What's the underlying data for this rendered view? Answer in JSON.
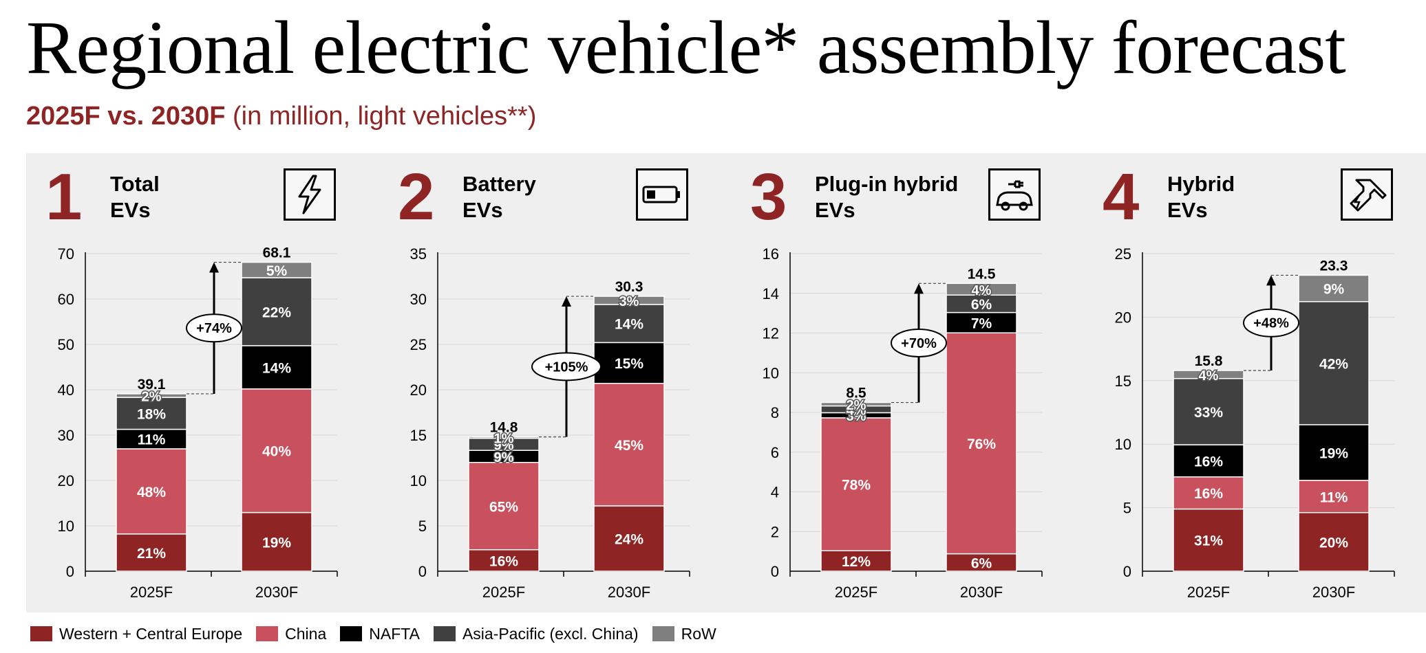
{
  "title": "Regional electric vehicle* assembly forecast",
  "subtitle_bold": "2025F vs. 2030F",
  "subtitle_rest": "(in million, light vehicles**)",
  "colors": {
    "Western + Central Europe": "#8e2424",
    "China": "#c9505d",
    "NAFTA": "#000000",
    "Asia-Pacific (excl. China)": "#404040",
    "RoW": "#7f7f7f"
  },
  "legend": [
    {
      "label": "Western + Central Europe",
      "color": "#8e2424"
    },
    {
      "label": "China",
      "color": "#c9505d"
    },
    {
      "label": "NAFTA",
      "color": "#000000"
    },
    {
      "label": "Asia-Pacific (excl. China)",
      "color": "#404040"
    },
    {
      "label": "RoW",
      "color": "#7f7f7f"
    }
  ],
  "panels": [
    {
      "number": "1",
      "title_line1": "Total",
      "title_line2": "EVs",
      "icon": "lightning-icon"
    },
    {
      "number": "2",
      "title_line1": "Battery",
      "title_line2": "EVs",
      "icon": "battery-icon"
    },
    {
      "number": "3",
      "title_line1": "Plug-in hybrid",
      "title_line2": "EVs",
      "icon": "plug-car-icon"
    },
    {
      "number": "4",
      "title_line1": "Hybrid",
      "title_line2": "EVs",
      "icon": "fuel-nozzle-icon"
    }
  ],
  "chart_data": [
    {
      "type": "bar",
      "stacked": true,
      "categories": [
        "2025F",
        "2030F"
      ],
      "ylim": [
        0,
        70
      ],
      "yticks": [
        0,
        10,
        20,
        30,
        40,
        50,
        60,
        70
      ],
      "totals": [
        39.1,
        68.1
      ],
      "total_labels": [
        "39.1",
        "68.1"
      ],
      "growth_label": "+74%",
      "series": [
        {
          "name": "Western + Central Europe",
          "shares": [
            21,
            19
          ],
          "labels": [
            "21%",
            "19%"
          ]
        },
        {
          "name": "China",
          "shares": [
            48,
            40
          ],
          "labels": [
            "48%",
            "40%"
          ]
        },
        {
          "name": "NAFTA",
          "shares": [
            11,
            14
          ],
          "labels": [
            "11%",
            "14%"
          ]
        },
        {
          "name": "Asia-Pacific (excl. China)",
          "shares": [
            18,
            22
          ],
          "labels": [
            "18%",
            "22%"
          ]
        },
        {
          "name": "RoW",
          "shares": [
            2,
            5
          ],
          "labels": [
            "2%",
            "5%"
          ]
        }
      ]
    },
    {
      "type": "bar",
      "stacked": true,
      "categories": [
        "2025F",
        "2030F"
      ],
      "ylim": [
        0,
        35
      ],
      "yticks": [
        0,
        5,
        10,
        15,
        20,
        25,
        30,
        35
      ],
      "totals": [
        14.8,
        30.3
      ],
      "total_labels": [
        "14.8",
        "30.3"
      ],
      "growth_label": "+105%",
      "series": [
        {
          "name": "Western + Central Europe",
          "shares": [
            16,
            24
          ],
          "labels": [
            "16%",
            "24%"
          ]
        },
        {
          "name": "China",
          "shares": [
            65,
            45
          ],
          "labels": [
            "65%",
            "45%"
          ]
        },
        {
          "name": "NAFTA",
          "shares": [
            9,
            15
          ],
          "labels": [
            "9%",
            "15%"
          ]
        },
        {
          "name": "Asia-Pacific (excl. China)",
          "shares": [
            9,
            14
          ],
          "labels": [
            "9%",
            "14%"
          ]
        },
        {
          "name": "RoW",
          "shares": [
            1,
            3
          ],
          "labels": [
            "1%",
            "3%"
          ]
        }
      ]
    },
    {
      "type": "bar",
      "stacked": true,
      "categories": [
        "2025F",
        "2030F"
      ],
      "ylim": [
        0,
        16
      ],
      "yticks": [
        0,
        2,
        4,
        6,
        8,
        10,
        12,
        14,
        16
      ],
      "totals": [
        8.5,
        14.5
      ],
      "total_labels": [
        "8.5",
        "14.5"
      ],
      "growth_label": "+70%",
      "series": [
        {
          "name": "Western + Central Europe",
          "shares": [
            12,
            6
          ],
          "labels": [
            "12%",
            "6%"
          ]
        },
        {
          "name": "China",
          "shares": [
            78,
            76
          ],
          "labels": [
            "78%",
            "76%"
          ]
        },
        {
          "name": "NAFTA",
          "shares": [
            3,
            7
          ],
          "labels": [
            "3%",
            "7%"
          ]
        },
        {
          "name": "Asia-Pacific (excl. China)",
          "shares": [
            4,
            6
          ],
          "labels": [
            "4%",
            "6%"
          ]
        },
        {
          "name": "RoW",
          "shares": [
            2,
            4
          ],
          "labels": [
            "2%",
            "4%"
          ]
        }
      ]
    },
    {
      "type": "bar",
      "stacked": true,
      "categories": [
        "2025F",
        "2030F"
      ],
      "ylim": [
        0,
        25
      ],
      "yticks": [
        0,
        5,
        10,
        15,
        20,
        25
      ],
      "totals": [
        15.8,
        23.3
      ],
      "total_labels": [
        "15.8",
        "23.3"
      ],
      "growth_label": "+48%",
      "series": [
        {
          "name": "Western + Central Europe",
          "shares": [
            31,
            20
          ],
          "labels": [
            "31%",
            "20%"
          ]
        },
        {
          "name": "China",
          "shares": [
            16,
            11
          ],
          "labels": [
            "16%",
            "11%"
          ]
        },
        {
          "name": "NAFTA",
          "shares": [
            16,
            19
          ],
          "labels": [
            "16%",
            "19%"
          ]
        },
        {
          "name": "Asia-Pacific (excl. China)",
          "shares": [
            33,
            42
          ],
          "labels": [
            "33%",
            "42%"
          ]
        },
        {
          "name": "RoW",
          "shares": [
            4,
            9
          ],
          "labels": [
            "4%",
            "9%"
          ]
        }
      ]
    }
  ]
}
